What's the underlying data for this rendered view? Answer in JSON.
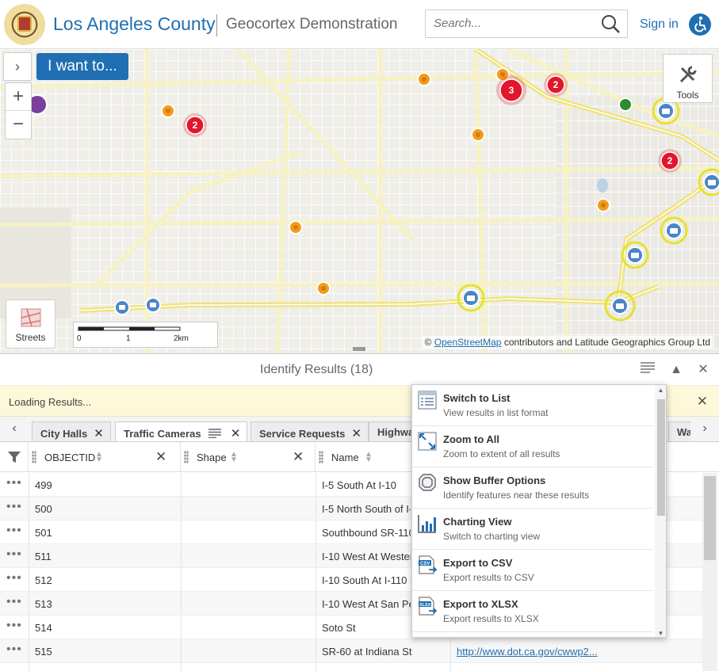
{
  "header": {
    "title": "Los Angeles County",
    "subtitle": "Geocortex Demonstration",
    "search_placeholder": "Search...",
    "sign_in": "Sign in"
  },
  "map": {
    "i_want_to": "I want to...",
    "tools_label": "Tools",
    "basemap_label": "Streets",
    "scale_labels": [
      "0",
      "1",
      "2km"
    ],
    "attribution_link": "OpenStreetMap",
    "attribution_prefix": "©",
    "attribution_suffix": "contributors and Latitude Geographics Group Ltd",
    "clusters": [
      "2",
      "3",
      "2",
      "2"
    ]
  },
  "panel": {
    "title": "Identify Results (18)",
    "loading_text": "Loading Results...",
    "tabs": [
      "City Halls",
      "Traffic Cameras",
      "Service Requests",
      "Highwa",
      "Wa"
    ],
    "columns": [
      "OBJECTID",
      "Shape",
      "Name"
    ],
    "rows": [
      {
        "id": "499",
        "name": "I-5 South At I-10",
        "url": ""
      },
      {
        "id": "500",
        "name": "I-5 North South of I-",
        "url": ""
      },
      {
        "id": "501",
        "name": "Southbound SR-110",
        "url": ""
      },
      {
        "id": "511",
        "name": "I-10 West At Wester",
        "url": ""
      },
      {
        "id": "512",
        "name": "I-10 South At I-110 (",
        "url": ""
      },
      {
        "id": "513",
        "name": "I-10 West At San Pec",
        "url": ""
      },
      {
        "id": "514",
        "name": "Soto St",
        "url": ""
      },
      {
        "id": "515",
        "name": "SR-60 at Indiana St",
        "url": "http://www.dot.ca.gov/cwwp2..."
      }
    ]
  },
  "menu": {
    "items": [
      {
        "title": "Switch to List",
        "desc": "View results in list format",
        "icon": "list-view-icon"
      },
      {
        "title": "Zoom to All",
        "desc": "Zoom to extent of all results",
        "icon": "zoom-extent-icon"
      },
      {
        "title": "Show Buffer Options",
        "desc": "Identify features near these results",
        "icon": "buffer-icon"
      },
      {
        "title": "Charting View",
        "desc": "Switch to charting view",
        "icon": "bar-chart-icon"
      },
      {
        "title": "Export to CSV",
        "desc": "Export results to CSV",
        "icon": "csv-export-icon"
      },
      {
        "title": "Export to XLSX",
        "desc": "Export results to XLSX",
        "icon": "xlsx-export-icon"
      }
    ]
  },
  "colors": {
    "brand_blue": "#1f6fb2",
    "cluster_red": "#e0162b",
    "service_orange": "#f59b1b",
    "camera_yellow": "#e6e22c",
    "loading_bg": "#fcf8d9"
  }
}
